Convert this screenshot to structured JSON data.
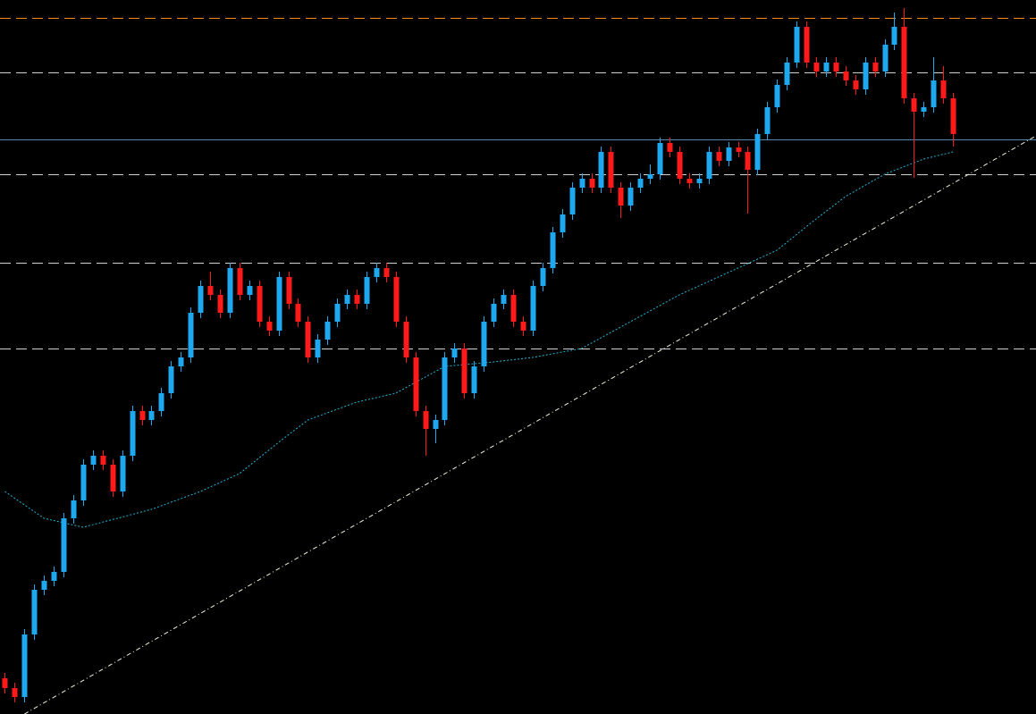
{
  "chart_data": {
    "type": "candlestick",
    "ylim": [
      0,
      799
    ],
    "xlim": [
      -0.5,
      105.5
    ],
    "up_color": "#1ea8f0",
    "down_color": "#ff1a1a",
    "levels": [
      {
        "value": 779,
        "color": "#ff8c1a",
        "dashed": true
      },
      {
        "value": 718,
        "color": "#d0d0d0",
        "dashed": true
      },
      {
        "value": 643,
        "color": "#5a87b0",
        "dashed": false
      },
      {
        "value": 604,
        "color": "#d0d0d0",
        "dashed": true
      },
      {
        "value": 505,
        "color": "#d0d0d0",
        "dashed": true
      },
      {
        "value": 409,
        "color": "#d0d0d0",
        "dashed": true
      }
    ],
    "trendline": {
      "x": [
        2,
        105.5
      ],
      "values": [
        0,
        647
      ],
      "color": "#f0f0d8"
    },
    "moving_average": {
      "color": "#22b4d8",
      "x": [
        0,
        4,
        8,
        15,
        20,
        24,
        28,
        31,
        36,
        40,
        45,
        50,
        54,
        59,
        64,
        69,
        74,
        79,
        83,
        86,
        90,
        94,
        97
      ],
      "values": [
        249,
        219,
        209,
        229,
        249,
        269,
        304,
        329,
        349,
        359,
        389,
        394,
        399,
        409,
        439,
        469,
        494,
        519,
        554,
        579,
        604,
        621,
        629
      ]
    },
    "ohlc": [
      [
        40,
        46,
        23,
        29
      ],
      [
        29,
        35,
        13,
        19
      ],
      [
        19,
        95,
        13,
        89
      ],
      [
        89,
        145,
        83,
        139
      ],
      [
        139,
        155,
        133,
        149
      ],
      [
        149,
        165,
        143,
        159
      ],
      [
        159,
        225,
        153,
        219
      ],
      [
        219,
        245,
        213,
        239
      ],
      [
        239,
        285,
        233,
        279
      ],
      [
        279,
        295,
        273,
        289
      ],
      [
        289,
        295,
        273,
        279
      ],
      [
        279,
        285,
        243,
        249
      ],
      [
        249,
        295,
        243,
        289
      ],
      [
        289,
        345,
        283,
        339
      ],
      [
        339,
        345,
        323,
        329
      ],
      [
        329,
        345,
        323,
        339
      ],
      [
        339,
        365,
        333,
        359
      ],
      [
        359,
        395,
        353,
        389
      ],
      [
        389,
        405,
        383,
        399
      ],
      [
        399,
        455,
        393,
        449
      ],
      [
        449,
        485,
        443,
        479
      ],
      [
        479,
        495,
        463,
        469
      ],
      [
        469,
        475,
        443,
        449
      ],
      [
        449,
        505,
        443,
        499
      ],
      [
        499,
        505,
        463,
        469
      ],
      [
        469,
        485,
        463,
        479
      ],
      [
        479,
        485,
        433,
        439
      ],
      [
        439,
        445,
        423,
        429
      ],
      [
        429,
        495,
        423,
        489
      ],
      [
        489,
        495,
        453,
        459
      ],
      [
        459,
        465,
        433,
        439
      ],
      [
        439,
        445,
        393,
        399
      ],
      [
        399,
        425,
        393,
        419
      ],
      [
        419,
        445,
        413,
        439
      ],
      [
        439,
        465,
        433,
        459
      ],
      [
        459,
        475,
        453,
        469
      ],
      [
        469,
        475,
        453,
        459
      ],
      [
        459,
        495,
        453,
        489
      ],
      [
        489,
        505,
        483,
        499
      ],
      [
        499,
        505,
        483,
        489
      ],
      [
        489,
        495,
        433,
        439
      ],
      [
        439,
        445,
        393,
        399
      ],
      [
        399,
        405,
        333,
        339
      ],
      [
        339,
        345,
        289,
        319
      ],
      [
        319,
        335,
        303,
        329
      ],
      [
        329,
        405,
        323,
        399
      ],
      [
        399,
        415,
        393,
        409
      ],
      [
        409,
        415,
        353,
        359
      ],
      [
        359,
        395,
        353,
        389
      ],
      [
        389,
        445,
        383,
        439
      ],
      [
        439,
        465,
        433,
        459
      ],
      [
        459,
        475,
        453,
        469
      ],
      [
        469,
        475,
        433,
        439
      ],
      [
        439,
        445,
        423,
        429
      ],
      [
        429,
        485,
        423,
        479
      ],
      [
        479,
        505,
        473,
        499
      ],
      [
        499,
        545,
        493,
        539
      ],
      [
        539,
        565,
        533,
        559
      ],
      [
        559,
        595,
        553,
        589
      ],
      [
        589,
        605,
        583,
        599
      ],
      [
        599,
        605,
        583,
        589
      ],
      [
        589,
        635,
        583,
        629
      ],
      [
        629,
        635,
        583,
        589
      ],
      [
        589,
        595,
        555,
        569
      ],
      [
        569,
        595,
        563,
        589
      ],
      [
        589,
        605,
        583,
        599
      ],
      [
        599,
        615,
        593,
        604
      ],
      [
        604,
        645,
        598,
        639
      ],
      [
        639,
        645,
        623,
        629
      ],
      [
        629,
        635,
        593,
        599
      ],
      [
        599,
        605,
        588,
        594
      ],
      [
        594,
        605,
        588,
        599
      ],
      [
        599,
        635,
        593,
        629
      ],
      [
        629,
        635,
        613,
        619
      ],
      [
        619,
        640,
        613,
        634
      ],
      [
        634,
        640,
        623,
        629
      ],
      [
        629,
        635,
        560,
        609
      ],
      [
        609,
        655,
        603,
        649
      ],
      [
        649,
        685,
        643,
        679
      ],
      [
        679,
        710,
        673,
        704
      ],
      [
        704,
        735,
        698,
        729
      ],
      [
        729,
        775,
        723,
        769
      ],
      [
        769,
        775,
        723,
        729
      ],
      [
        729,
        735,
        713,
        719
      ],
      [
        719,
        735,
        713,
        729
      ],
      [
        729,
        735,
        713,
        719
      ],
      [
        719,
        725,
        703,
        709
      ],
      [
        709,
        715,
        693,
        699
      ],
      [
        699,
        735,
        693,
        729
      ],
      [
        729,
        735,
        713,
        719
      ],
      [
        719,
        755,
        713,
        749
      ],
      [
        749,
        785,
        743,
        769
      ],
      [
        769,
        790,
        683,
        689
      ],
      [
        689,
        695,
        600,
        674
      ],
      [
        674,
        685,
        668,
        679
      ],
      [
        679,
        735,
        673,
        709
      ],
      [
        709,
        725,
        683,
        689
      ],
      [
        689,
        695,
        635,
        649
      ]
    ]
  }
}
